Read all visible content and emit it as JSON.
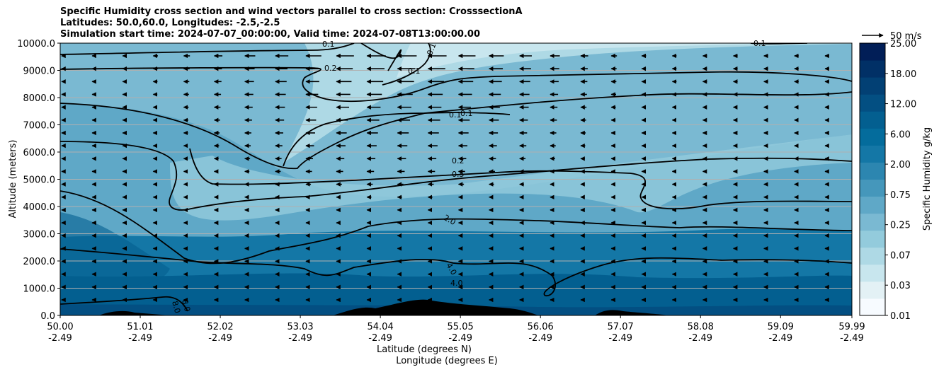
{
  "chart_data": {
    "type": "heatmap",
    "title": [
      "Specific Humidity cross section and wind vectors parallel to cross section: CrosssectionA",
      "Latitudes: 50.0,60.0, Longitudes: -2.5,-2.5",
      "Simulation start time: 2024-07-07_00:00:00, Valid time: 2024-07-08T13:00:00.00"
    ],
    "ylabel": "Altitude (meters)",
    "xlabel_lat": "Latitude (degrees N)",
    "xlabel_lon": "Longitude (degrees E)",
    "ylim": [
      0,
      10000
    ],
    "xlim": [
      50.0,
      59.99
    ],
    "y_ticks": [
      "0.0",
      "1000.0",
      "2000.0",
      "3000.0",
      "4000.0",
      "5000.0",
      "6000.0",
      "7000.0",
      "8000.0",
      "9000.0",
      "10000.0"
    ],
    "y_tick_values": [
      0,
      1000,
      2000,
      3000,
      4000,
      5000,
      6000,
      7000,
      8000,
      9000,
      10000
    ],
    "x_ticks_lat": [
      "50.00",
      "51.01",
      "52.02",
      "53.03",
      "54.04",
      "55.05",
      "56.06",
      "57.07",
      "58.08",
      "59.09",
      "59.99"
    ],
    "x_ticks_lon": [
      "-2.49",
      "-2.49",
      "-2.49",
      "-2.49",
      "-2.49",
      "-2.49",
      "-2.49",
      "-2.49",
      "-2.49",
      "-2.49",
      "-2.49"
    ],
    "x_tick_values": [
      50.0,
      51.01,
      52.02,
      53.03,
      54.04,
      55.05,
      56.06,
      57.07,
      58.08,
      59.09,
      59.99
    ],
    "colorbar": {
      "label": "Specific Humidity g/kg",
      "levels": [
        "0.01",
        "0.03",
        "0.07",
        "0.25",
        "0.75",
        "2.00",
        "6.00",
        "12.00",
        "18.00",
        "25.00"
      ],
      "colors": [
        "#f7fbff",
        "#e3f1f5",
        "#c8e6ee",
        "#aed9e5",
        "#93cbdc",
        "#7ab9d2",
        "#5fa8c7",
        "#4597bb",
        "#2c86b0",
        "#1477a6",
        "#046c9c",
        "#035f90",
        "#034f82",
        "#024074",
        "#013066",
        "#011e57"
      ]
    },
    "contour_labels": [
      "0.1",
      "0.2",
      "0.1",
      "0.1",
      "0.1",
      "0.1",
      "0.2",
      "0.5",
      "2.0",
      "4.0",
      "4.0",
      "8.0",
      "8.0",
      "0.1"
    ],
    "contour_levels": [
      0.1,
      0.2,
      0.5,
      2.0,
      4.0,
      8.0
    ],
    "wind_reference": "50 m/s",
    "terrain_color": "#000000"
  }
}
